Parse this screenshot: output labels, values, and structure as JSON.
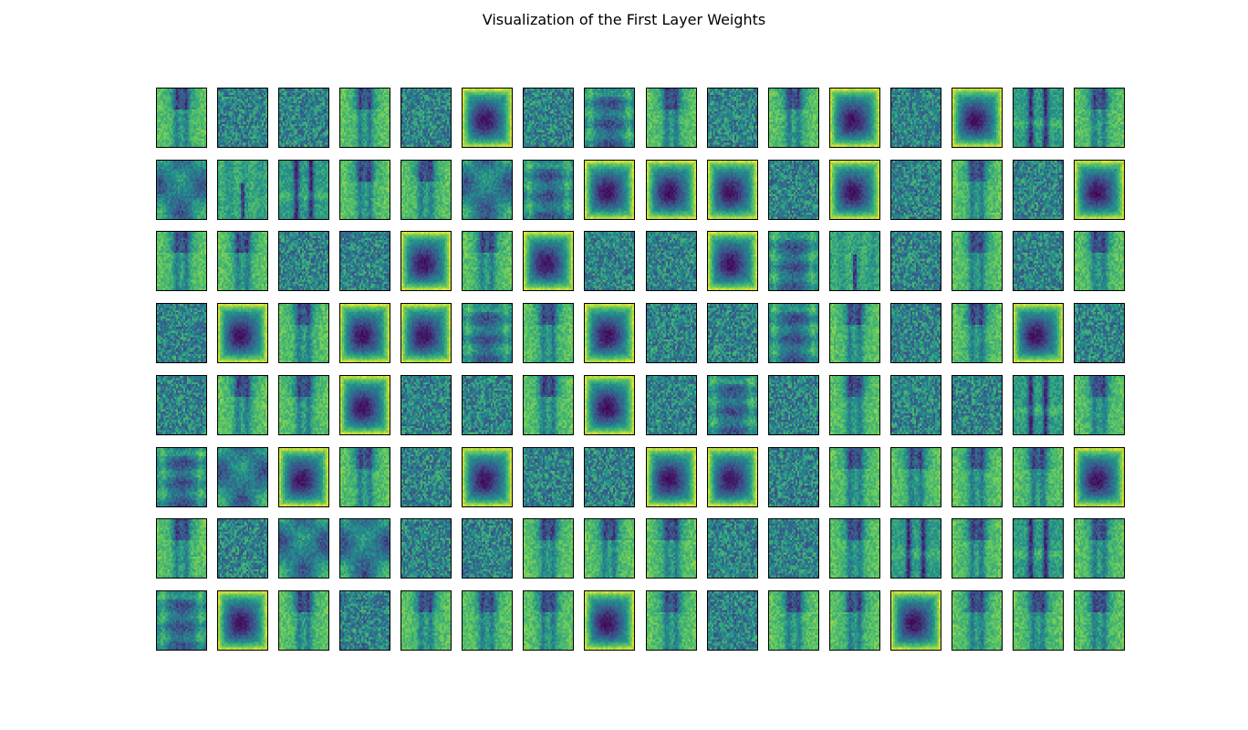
{
  "figure": {
    "title": "Visualization of the First Layer Weights",
    "colormap": "viridis",
    "colormap_colors": [
      "#440154",
      "#3b528b",
      "#21918c",
      "#5ec962",
      "#fde725"
    ]
  },
  "chart_data": {
    "type": "heatmap",
    "title": "Visualization of the First Layer Weights",
    "rows": 8,
    "cols": 16,
    "tile_resolution": [
      28,
      28
    ],
    "axes": "off",
    "grid": false,
    "legend": "none",
    "patterns": [
      [
        "trousers",
        "noise",
        "noise",
        "trousers",
        "noise",
        "bag",
        "noise",
        "shirt",
        "trousers",
        "noise",
        "trousers",
        "bag",
        "noise",
        "bag",
        "trousers_dark",
        "trousers"
      ],
      [
        "blob",
        "trousers_light",
        "trousers_dark",
        "trousers",
        "trousers",
        "blob",
        "shirt",
        "bag",
        "bag",
        "bag",
        "noise",
        "bag",
        "noise",
        "trousers",
        "noise",
        "bag"
      ],
      [
        "trousers",
        "trousers",
        "noise",
        "noise",
        "bag",
        "trousers",
        "bag",
        "noise",
        "noise",
        "bag",
        "shirt",
        "trousers_light",
        "noise",
        "trousers",
        "noise",
        "trousers"
      ],
      [
        "noise",
        "bag",
        "trousers",
        "bag",
        "bag",
        "shirt",
        "trousers",
        "bag",
        "noise",
        "noise",
        "shirt",
        "trousers",
        "noise",
        "trousers",
        "bag",
        "noise"
      ],
      [
        "noise",
        "trousers",
        "trousers",
        "bag",
        "noise",
        "noise",
        "trousers",
        "bag",
        "noise",
        "shirt",
        "noise",
        "trousers",
        "noise",
        "noise",
        "trousers_dark",
        "trousers"
      ],
      [
        "shirt",
        "blob",
        "bag",
        "trousers",
        "noise",
        "bag",
        "noise",
        "noise",
        "bag",
        "bag",
        "noise",
        "trousers",
        "trousers",
        "trousers",
        "trousers",
        "bag"
      ],
      [
        "trousers",
        "noise",
        "blob",
        "blob",
        "noise",
        "noise",
        "trousers",
        "trousers",
        "trousers",
        "noise",
        "noise",
        "trousers",
        "trousers_dark",
        "trousers",
        "trousers_dark",
        "trousers"
      ],
      [
        "shirt",
        "bag",
        "trousers",
        "noise",
        "trousers",
        "trousers",
        "trousers",
        "bag",
        "trousers",
        "noise",
        "trousers",
        "trousers",
        "bag",
        "trousers",
        "trousers",
        "trousers"
      ]
    ]
  }
}
